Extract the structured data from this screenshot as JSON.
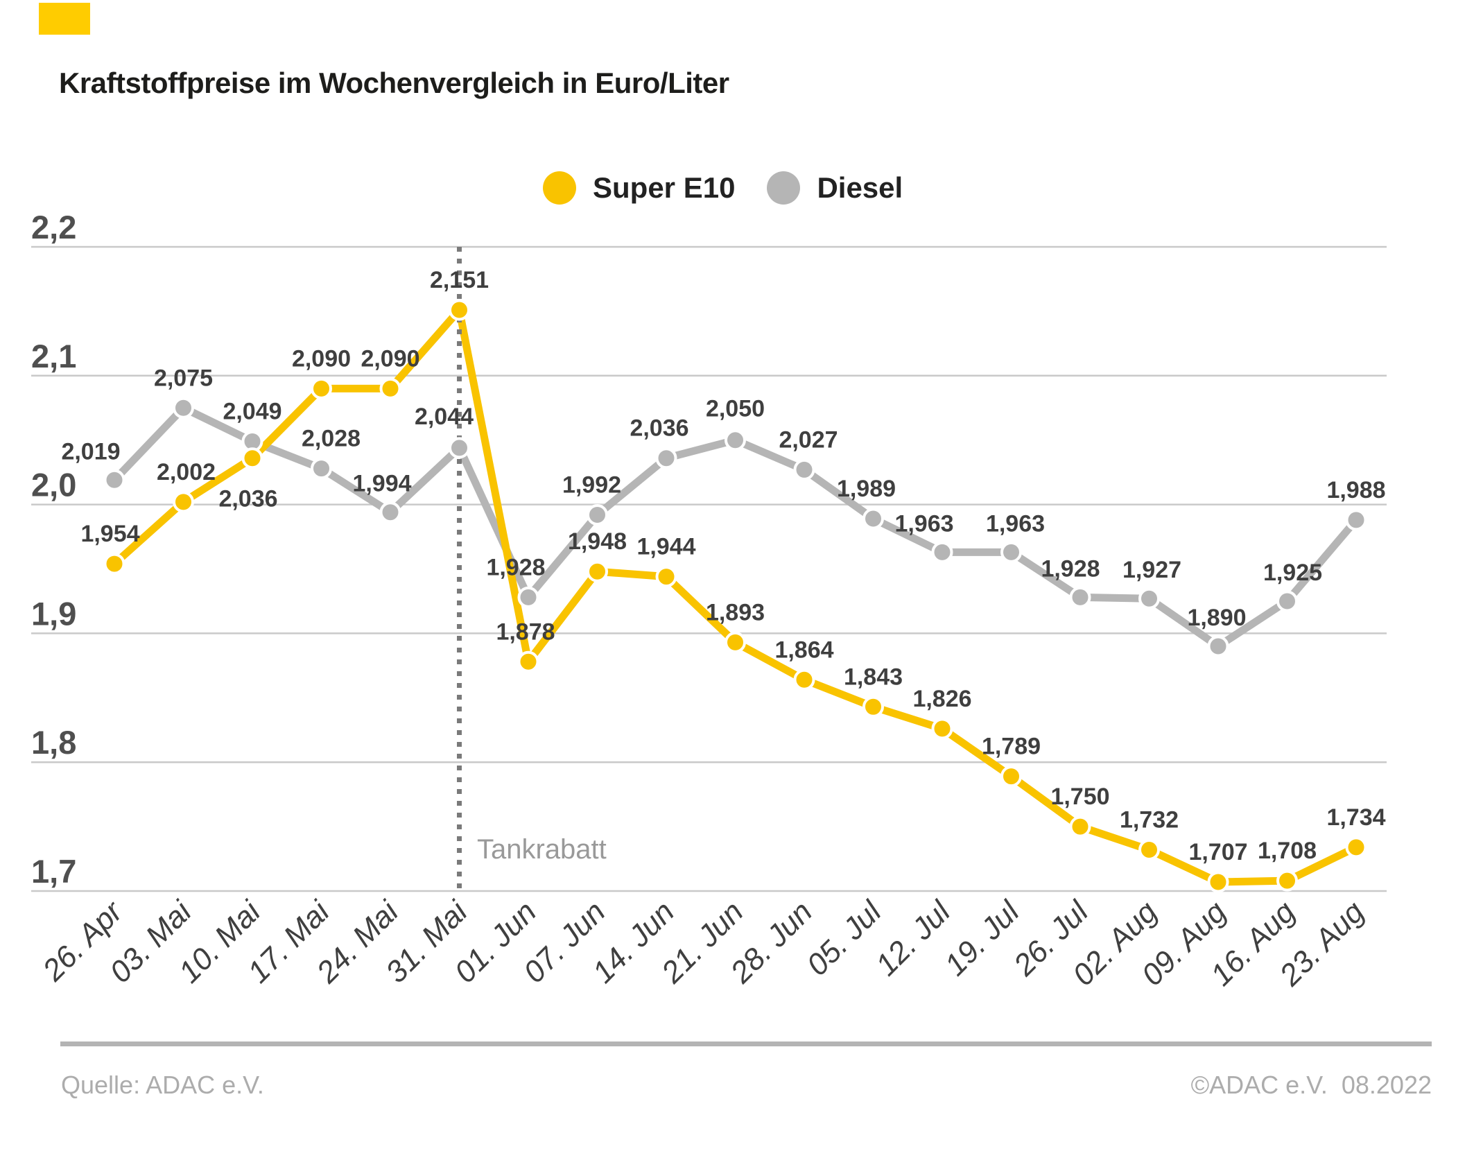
{
  "page": {
    "title": "Kraftstoffpreise im Wochenvergleich in Euro/Liter",
    "brand_color": "#FFCC00"
  },
  "legend": [
    {
      "label": "Super E10",
      "color": "#F9C300"
    },
    {
      "label": "Diesel",
      "color": "#B5B5B5"
    }
  ],
  "annotation": {
    "label": "Tankrabatt"
  },
  "footer": {
    "source": "Quelle: ADAC e.V.",
    "copyright": "©ADAC e.V.",
    "date": "08.2022"
  },
  "chart_data": {
    "type": "line",
    "title": "Kraftstoffpreise im Wochenvergleich in Euro/Liter",
    "categories": [
      "26. Apr",
      "03. Mai",
      "10. Mai",
      "17. Mai",
      "24. Mai",
      "31. Mai",
      "01. Jun",
      "07. Jun",
      "14. Jun",
      "21. Jun",
      "28. Jun",
      "05. Jul",
      "12. Jul",
      "19. Jul",
      "26. Jul",
      "02. Aug",
      "09. Aug",
      "16. Aug",
      "23. Aug"
    ],
    "series": [
      {
        "name": "Diesel",
        "color": "#B5B5B5",
        "values": [
          2.019,
          2.075,
          2.049,
          2.028,
          1.994,
          2.044,
          1.928,
          1.992,
          2.036,
          2.05,
          2.027,
          1.989,
          1.963,
          1.963,
          1.928,
          1.927,
          1.89,
          1.925,
          1.988
        ],
        "label_offsets": [
          [
            -34,
            -30
          ],
          [
            0,
            -32
          ],
          [
            0,
            -32
          ],
          [
            14,
            -32
          ],
          [
            -12,
            -30
          ],
          [
            -22,
            -34
          ],
          [
            -18,
            -32
          ],
          [
            -8,
            -32
          ],
          [
            -10,
            -32
          ],
          [
            0,
            -34
          ],
          [
            6,
            -32
          ],
          [
            -10,
            -32
          ],
          [
            -26,
            -30
          ],
          [
            6,
            -30
          ],
          [
            -14,
            -30
          ],
          [
            4,
            -30
          ],
          [
            -2,
            -30
          ],
          [
            8,
            -30
          ],
          [
            0,
            -32
          ]
        ]
      },
      {
        "name": "Super E10",
        "color": "#F9C300",
        "values": [
          1.954,
          2.002,
          2.036,
          2.09,
          2.09,
          2.151,
          1.878,
          1.948,
          1.944,
          1.893,
          1.864,
          1.843,
          1.826,
          1.789,
          1.75,
          1.732,
          1.707,
          1.708,
          1.734
        ],
        "label_offsets": [
          [
            -6,
            -32
          ],
          [
            4,
            -32
          ],
          [
            -6,
            70
          ],
          [
            0,
            -32
          ],
          [
            0,
            -32
          ],
          [
            0,
            -32
          ],
          [
            -4,
            -32
          ],
          [
            0,
            -32
          ],
          [
            0,
            -32
          ],
          [
            0,
            -32
          ],
          [
            0,
            -32
          ],
          [
            0,
            -32
          ],
          [
            0,
            -32
          ],
          [
            0,
            -32
          ],
          [
            0,
            -32
          ],
          [
            0,
            -32
          ],
          [
            0,
            -32
          ],
          [
            0,
            -32
          ],
          [
            0,
            -32
          ]
        ]
      }
    ],
    "y_ticks": [
      2.2,
      2.1,
      2.0,
      1.9,
      1.8,
      1.7
    ],
    "ylim": [
      1.7,
      2.2
    ],
    "grid": true,
    "legend_position": "top",
    "annotation_index": 5,
    "annotation_label": "Tankrabatt",
    "decimal_separator": ","
  }
}
